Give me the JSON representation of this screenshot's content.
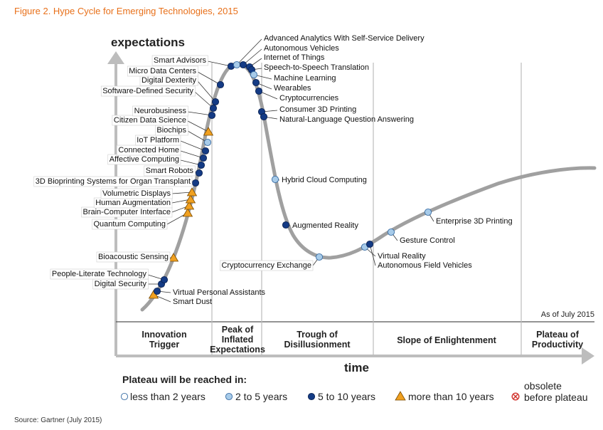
{
  "figure_title": "Figure 2. Hype Cycle for Emerging Technologies, 2015",
  "source": "Source: Gartner (July 2015)",
  "colors": {
    "under_2": "#ffffff",
    "two_to_5": "#a7cbe9",
    "five_to_10": "#143b85",
    "over_10": "#f0a020",
    "obsolete": "#d0302a",
    "curve": "#999999",
    "title": "#e8701a"
  },
  "chart_data": {
    "type": "line",
    "title": "",
    "ylabel": "expectations",
    "xlabel": "time",
    "as_of": "As of July 2015",
    "phases": [
      "Innovation Trigger",
      "Peak of Inflated Expectations",
      "Trough of Disillusionment",
      "Slope of Enlightenment",
      "Plateau of Productivity"
    ],
    "legend_title": "Plateau will be reached in:",
    "legend": [
      {
        "key": "under_2",
        "label": "less than 2 years"
      },
      {
        "key": "two_to_5",
        "label": "2 to 5 years"
      },
      {
        "key": "five_to_10",
        "label": "5 to 10 years"
      },
      {
        "key": "over_10",
        "label": "more than 10 years"
      },
      {
        "key": "obsolete",
        "label": "obsolete before plateau"
      }
    ],
    "technologies": [
      {
        "name": "Smart Dust",
        "phase": "Innovation Trigger",
        "plateau": "over_10"
      },
      {
        "name": "Virtual Personal Assistants",
        "phase": "Innovation Trigger",
        "plateau": "five_to_10"
      },
      {
        "name": "Digital Security",
        "phase": "Innovation Trigger",
        "plateau": "five_to_10"
      },
      {
        "name": "People-Literate Technology",
        "phase": "Innovation Trigger",
        "plateau": "five_to_10"
      },
      {
        "name": "Bioacoustic Sensing",
        "phase": "Innovation Trigger",
        "plateau": "over_10"
      },
      {
        "name": "Quantum Computing",
        "phase": "Innovation Trigger",
        "plateau": "over_10"
      },
      {
        "name": "Brain-Computer Interface",
        "phase": "Innovation Trigger",
        "plateau": "over_10"
      },
      {
        "name": "Human Augmentation",
        "phase": "Innovation Trigger",
        "plateau": "over_10"
      },
      {
        "name": "Volumetric Displays",
        "phase": "Innovation Trigger",
        "plateau": "over_10"
      },
      {
        "name": "3D Bioprinting Systems for Organ Transplant",
        "phase": "Innovation Trigger",
        "plateau": "five_to_10"
      },
      {
        "name": "Smart Robots",
        "phase": "Innovation Trigger",
        "plateau": "five_to_10"
      },
      {
        "name": "Affective Computing",
        "phase": "Innovation Trigger",
        "plateau": "five_to_10"
      },
      {
        "name": "Connected Home",
        "phase": "Innovation Trigger",
        "plateau": "five_to_10"
      },
      {
        "name": "IoT Platform",
        "phase": "Innovation Trigger",
        "plateau": "five_to_10"
      },
      {
        "name": "Biochips",
        "phase": "Innovation Trigger",
        "plateau": "two_to_5"
      },
      {
        "name": "Citizen Data Science",
        "phase": "Innovation Trigger",
        "plateau": "over_10"
      },
      {
        "name": "Neurobusiness",
        "phase": "Innovation Trigger",
        "plateau": "five_to_10"
      },
      {
        "name": "Software-Defined Security",
        "phase": "Innovation Trigger",
        "plateau": "five_to_10"
      },
      {
        "name": "Digital Dexterity",
        "phase": "Innovation Trigger",
        "plateau": "five_to_10"
      },
      {
        "name": "Micro Data Centers",
        "phase": "Innovation Trigger",
        "plateau": "five_to_10"
      },
      {
        "name": "Smart Advisors",
        "phase": "Innovation Trigger",
        "plateau": "five_to_10"
      },
      {
        "name": "Advanced Analytics With Self-Service Delivery",
        "phase": "Peak of Inflated Expectations",
        "plateau": "two_to_5"
      },
      {
        "name": "Autonomous Vehicles",
        "phase": "Peak of Inflated Expectations",
        "plateau": "five_to_10"
      },
      {
        "name": "Internet of Things",
        "phase": "Peak of Inflated Expectations",
        "plateau": "five_to_10"
      },
      {
        "name": "Speech-to-Speech Translation",
        "phase": "Peak of Inflated Expectations",
        "plateau": "five_to_10"
      },
      {
        "name": "Machine Learning",
        "phase": "Peak of Inflated Expectations",
        "plateau": "two_to_5"
      },
      {
        "name": "Wearables",
        "phase": "Peak of Inflated Expectations",
        "plateau": "five_to_10"
      },
      {
        "name": "Cryptocurrencies",
        "phase": "Peak of Inflated Expectations",
        "plateau": "five_to_10"
      },
      {
        "name": "Consumer 3D Printing",
        "phase": "Peak of Inflated Expectations",
        "plateau": "five_to_10"
      },
      {
        "name": "Natural-Language Question Answering",
        "phase": "Peak of Inflated Expectations",
        "plateau": "five_to_10"
      },
      {
        "name": "Hybrid Cloud Computing",
        "phase": "Trough of Disillusionment",
        "plateau": "two_to_5"
      },
      {
        "name": "Augmented Reality",
        "phase": "Trough of Disillusionment",
        "plateau": "five_to_10"
      },
      {
        "name": "Cryptocurrency Exchange",
        "phase": "Trough of Disillusionment",
        "plateau": "two_to_5"
      },
      {
        "name": "Virtual Reality",
        "phase": "Slope of Enlightenment",
        "plateau": "two_to_5"
      },
      {
        "name": "Autonomous Field Vehicles",
        "phase": "Slope of Enlightenment",
        "plateau": "five_to_10"
      },
      {
        "name": "Gesture Control",
        "phase": "Slope of Enlightenment",
        "plateau": "two_to_5"
      },
      {
        "name": "Enterprise 3D Printing",
        "phase": "Slope of Enlightenment",
        "plateau": "two_to_5"
      }
    ]
  }
}
